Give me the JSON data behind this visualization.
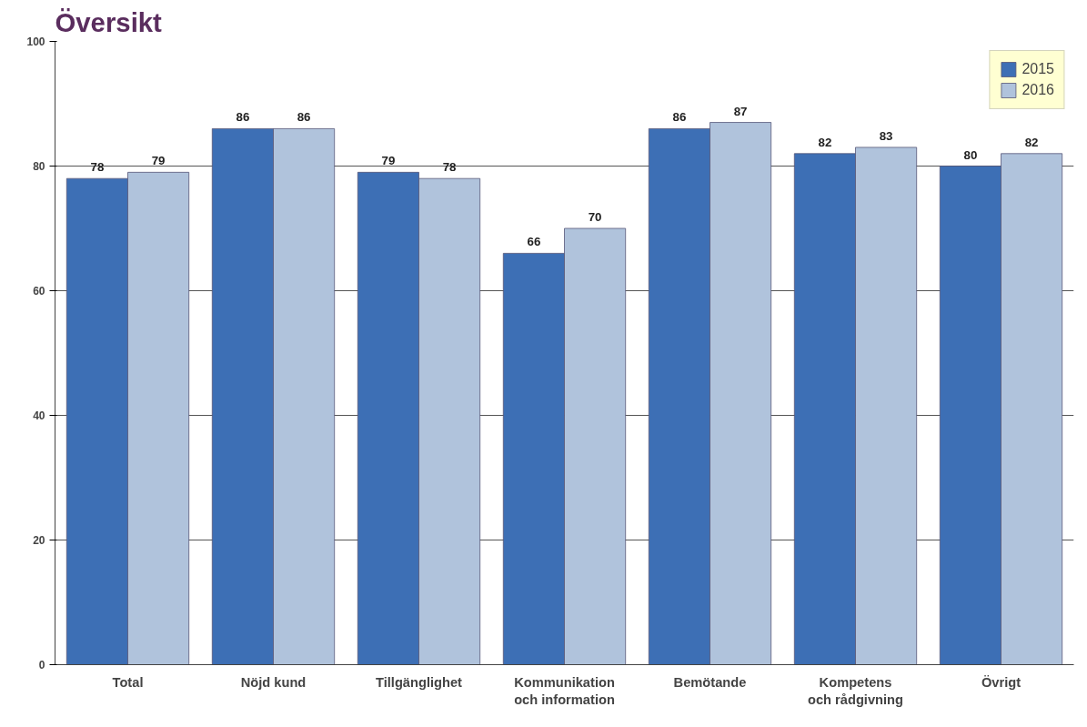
{
  "chart_data": {
    "type": "bar",
    "title": "Översikt",
    "categories": [
      "Total",
      "Nöjd kund",
      "Tillgänglighet",
      "Kommunikation\noch information",
      "Bemötande",
      "Kompetens\noch rådgivning",
      "Övrigt"
    ],
    "series": [
      {
        "name": "2015",
        "color": "#3d6fb5",
        "values": [
          78,
          86,
          79,
          66,
          86,
          82,
          80
        ]
      },
      {
        "name": "2016",
        "color": "#b0c3dc",
        "values": [
          79,
          86,
          78,
          70,
          87,
          83,
          82
        ]
      }
    ],
    "ylim": [
      0,
      100
    ],
    "yticks": [
      0,
      20,
      40,
      60,
      80,
      100
    ],
    "grid": "y",
    "legend": "top right",
    "data_labels": true
  }
}
